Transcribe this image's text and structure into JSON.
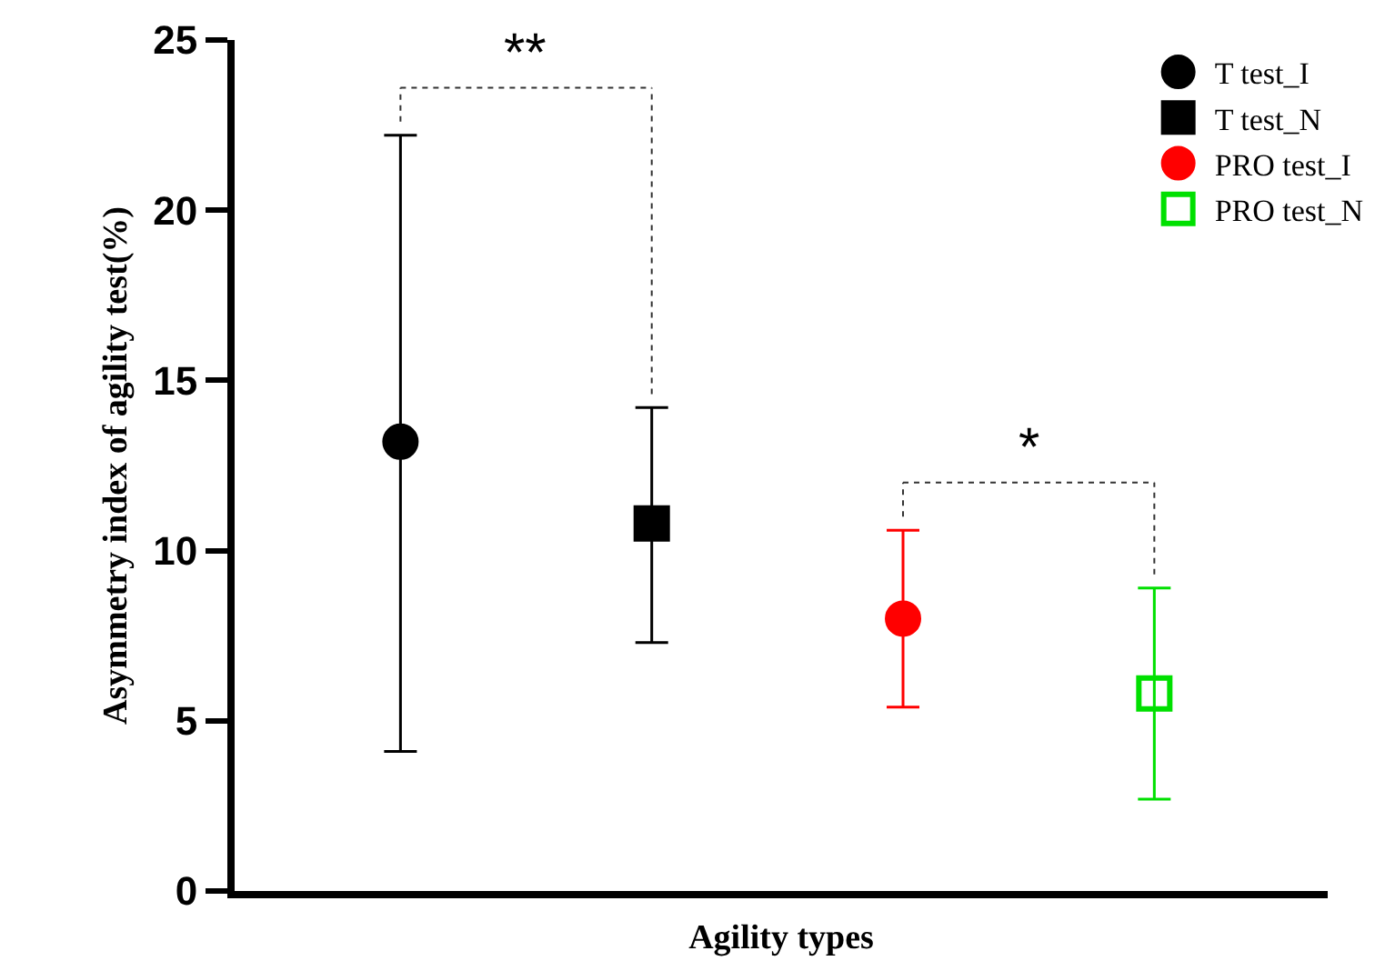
{
  "chart_data": {
    "type": "scatter",
    "xlabel": "Agility types",
    "ylabel": "Asymmetry index of agility test(%)",
    "categories": [
      null,
      null,
      null,
      null
    ],
    "series": [
      {
        "name": "T test_I",
        "color": "#000000",
        "marker": "circle",
        "values": [
          13.2,
          null,
          null,
          null
        ],
        "errors": [
          [
            4.1,
            22.2
          ],
          null,
          null,
          null
        ]
      },
      {
        "name": "T test_N",
        "color": "#000000",
        "marker": "square",
        "values": [
          null,
          10.8,
          null,
          null
        ],
        "errors": [
          null,
          [
            7.3,
            14.2
          ],
          null,
          null
        ]
      },
      {
        "name": "PRO test_I",
        "color": "#ff0000",
        "marker": "circle",
        "values": [
          null,
          null,
          8.0,
          null
        ],
        "errors": [
          null,
          null,
          [
            5.4,
            10.6
          ],
          null
        ]
      },
      {
        "name": "PRO test_N",
        "color": "#00e000",
        "marker": "square-open",
        "values": [
          null,
          null,
          null,
          5.8
        ],
        "errors": [
          null,
          null,
          null,
          [
            2.7,
            8.9
          ]
        ]
      }
    ],
    "annotations": [
      "**",
      "*"
    ],
    "ylim": [
      0,
      25
    ],
    "yticks": [
      0,
      5,
      10,
      15,
      20,
      25
    ],
    "grid": false,
    "legend": "top right"
  }
}
